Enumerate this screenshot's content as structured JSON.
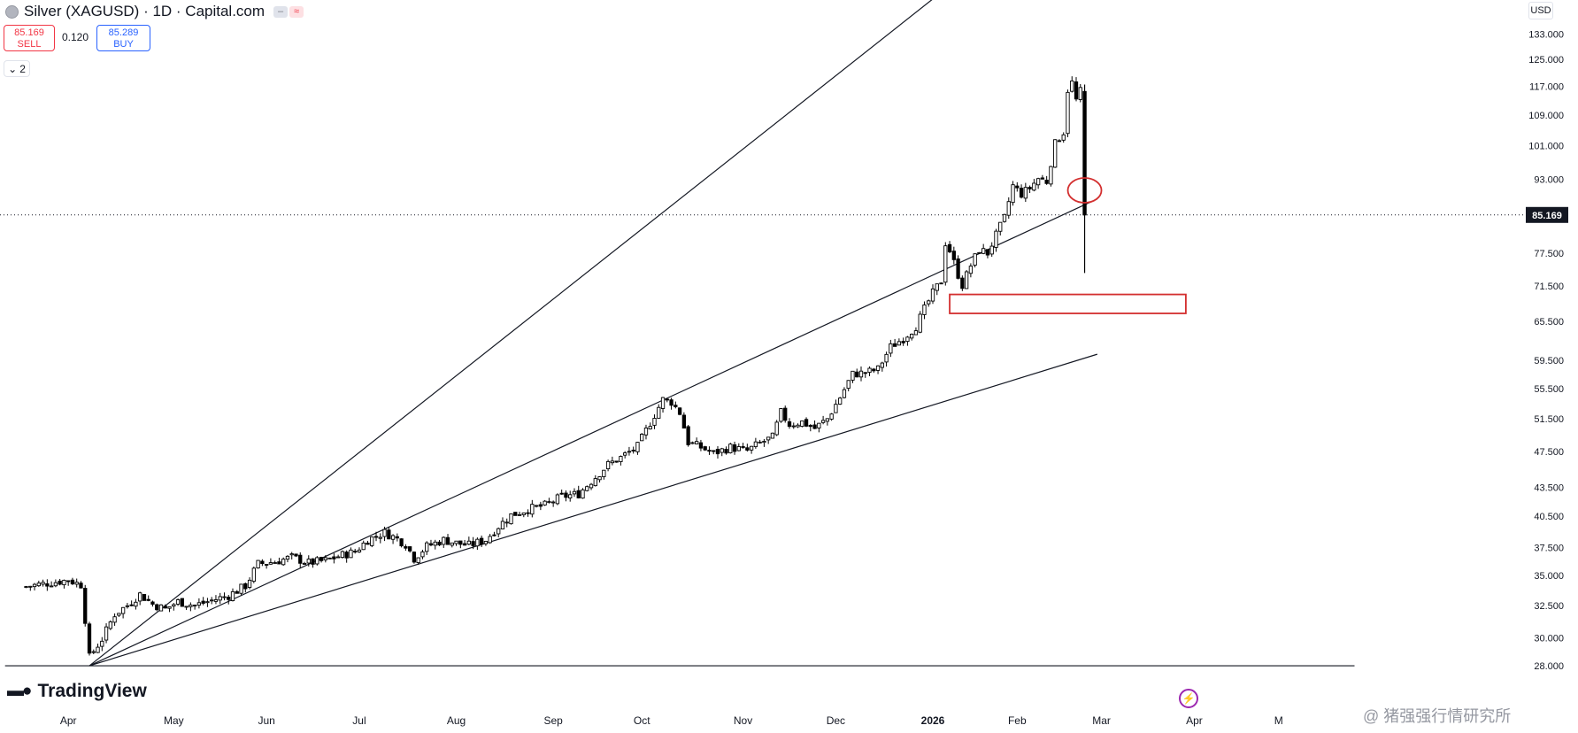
{
  "header": {
    "title": "Silver (XAGUSD) · 1D · Capital.com",
    "sell_price": "85.169",
    "sell_label": "SELL",
    "spread": "0.120",
    "buy_price": "85.289",
    "buy_label": "BUY",
    "indicator_count": "2",
    "currency": "USD"
  },
  "branding": {
    "logo_text": "TradingView",
    "watermark": "@ 猪强强行情研究所"
  },
  "colors": {
    "candle_up": "#ffffff",
    "candle_down": "#000000",
    "trendline": "#131722",
    "annotation": "#d32f2f",
    "price_tag": "#131722"
  },
  "chart_data": {
    "type": "candlestick",
    "x_axis_labels": [
      "Apr",
      "May",
      "Jun",
      "Jul",
      "Aug",
      "Sep",
      "Oct",
      "Nov",
      "Dec",
      "2026",
      "Feb",
      "Mar",
      "Apr",
      "M"
    ],
    "y_axis_labels": [
      "133.000",
      "125.000",
      "117.000",
      "109.000",
      "101.000",
      "93.000",
      "77.500",
      "71.500",
      "65.500",
      "59.500",
      "55.500",
      "51.500",
      "47.500",
      "43.500",
      "40.500",
      "37.500",
      "35.000",
      "32.500",
      "30.000",
      "28.000"
    ],
    "y_scale": "log",
    "ylim": [
      27.4,
      141
    ],
    "current_price": 85.169,
    "current_price_label": "85.169",
    "grid": false,
    "trading_days": 255,
    "keyframes": [
      [
        -16,
        34.0
      ],
      [
        -5,
        34.6
      ],
      [
        -2,
        34.2
      ],
      [
        0,
        28.6
      ],
      [
        3,
        29.9
      ],
      [
        6,
        31.8
      ],
      [
        9,
        32.5
      ],
      [
        12,
        33.4
      ],
      [
        15,
        32.6
      ],
      [
        18,
        32.2
      ],
      [
        21,
        32.8
      ],
      [
        25,
        32.5
      ],
      [
        29,
        32.9
      ],
      [
        33,
        33.3
      ],
      [
        37,
        34.1
      ],
      [
        40,
        36.0
      ],
      [
        44,
        36.2
      ],
      [
        48,
        36.6
      ],
      [
        52,
        36.1
      ],
      [
        56,
        36.3
      ],
      [
        60,
        36.8
      ],
      [
        63,
        37.1
      ],
      [
        66,
        38.2
      ],
      [
        70,
        38.9
      ],
      [
        73,
        38.3
      ],
      [
        75,
        37.8
      ],
      [
        77,
        36.5
      ],
      [
        80,
        37.6
      ],
      [
        84,
        38.2
      ],
      [
        87,
        37.9
      ],
      [
        90,
        37.7
      ],
      [
        94,
        38.2
      ],
      [
        97,
        39.5
      ],
      [
        100,
        40.6
      ],
      [
        104,
        41.2
      ],
      [
        108,
        41.6
      ],
      [
        112,
        42.5
      ],
      [
        116,
        42.8
      ],
      [
        120,
        44.6
      ],
      [
        123,
        46.0
      ],
      [
        126,
        46.8
      ],
      [
        130,
        48.1
      ],
      [
        133,
        51.0
      ],
      [
        136,
        54.0
      ],
      [
        138,
        53.7
      ],
      [
        140,
        52.3
      ],
      [
        142,
        48.6
      ],
      [
        145,
        48.0
      ],
      [
        148,
        47.3
      ],
      [
        152,
        48.0
      ],
      [
        156,
        47.6
      ],
      [
        159,
        48.5
      ],
      [
        162,
        49.2
      ],
      [
        164,
        52.3
      ],
      [
        166,
        50.8
      ],
      [
        169,
        51.1
      ],
      [
        172,
        50.3
      ],
      [
        175,
        51.5
      ],
      [
        178,
        54.3
      ],
      [
        181,
        57.5
      ],
      [
        184,
        57.7
      ],
      [
        187,
        58.2
      ],
      [
        190,
        61.5
      ],
      [
        193,
        62.8
      ],
      [
        196,
        64.7
      ],
      [
        198,
        67.5
      ],
      [
        200,
        70.2
      ],
      [
        202,
        72.4
      ],
      [
        203,
        79.5
      ],
      [
        204,
        78.0
      ],
      [
        206,
        73.5
      ],
      [
        207,
        71.6
      ],
      [
        209,
        75.2
      ],
      [
        211,
        78.2
      ],
      [
        213,
        77.5
      ],
      [
        215,
        81.0
      ],
      [
        217,
        84.5
      ],
      [
        219,
        91.5
      ],
      [
        221,
        89.7
      ],
      [
        223,
        91.0
      ],
      [
        225,
        93.2
      ],
      [
        227,
        92.5
      ],
      [
        229,
        101.5
      ],
      [
        231,
        104.5
      ],
      [
        232,
        116.0
      ],
      [
        233,
        118.0
      ],
      [
        234,
        113.0
      ],
      [
        235,
        115.5
      ],
      [
        236,
        85.169
      ]
    ],
    "big_candle": {
      "index": 236,
      "open": 115.5,
      "high": 117.5,
      "low": 73.8,
      "close": 85.169
    },
    "trendlines": [
      {
        "from": [
          0,
          28.0
        ],
        "to": [
          239,
          200
        ]
      },
      {
        "from": [
          0,
          28.0
        ],
        "to": [
          239,
          88.6
        ]
      },
      {
        "from": [
          0,
          28.0
        ],
        "to": [
          239,
          60.4
        ]
      },
      {
        "from": [
          -20,
          28.0
        ],
        "to": [
          300,
          28.0
        ]
      }
    ],
    "annotations": [
      {
        "type": "ellipse",
        "index": 236,
        "price": 90.5
      },
      {
        "type": "zone",
        "from_index": 204,
        "to_index": 260,
        "high": 70.0,
        "low": 66.8
      }
    ]
  }
}
